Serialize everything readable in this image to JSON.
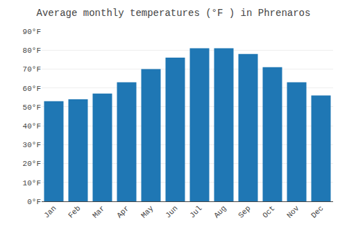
{
  "chart_data": {
    "type": "bar",
    "title": "Average monthly temperatures (°F ) in Phrenaros",
    "categories": [
      "Jan",
      "Feb",
      "Mar",
      "Apr",
      "May",
      "Jun",
      "Jul",
      "Aug",
      "Sep",
      "Oct",
      "Nov",
      "Dec"
    ],
    "values": [
      53,
      54,
      57,
      63,
      70,
      76,
      81,
      81,
      78,
      71,
      63,
      56
    ],
    "ylim": [
      0,
      90
    ],
    "yticks": [
      {
        "value": 0,
        "label": "0°F"
      },
      {
        "value": 10,
        "label": "10°F"
      },
      {
        "value": 20,
        "label": "20°F"
      },
      {
        "value": 30,
        "label": "30°F"
      },
      {
        "value": 40,
        "label": "40°F"
      },
      {
        "value": 50,
        "label": "50°F"
      },
      {
        "value": 60,
        "label": "60°F"
      },
      {
        "value": 70,
        "label": "70°F"
      },
      {
        "value": 80,
        "label": "80°F"
      },
      {
        "value": 90,
        "label": "90°F"
      }
    ],
    "grid": true
  }
}
